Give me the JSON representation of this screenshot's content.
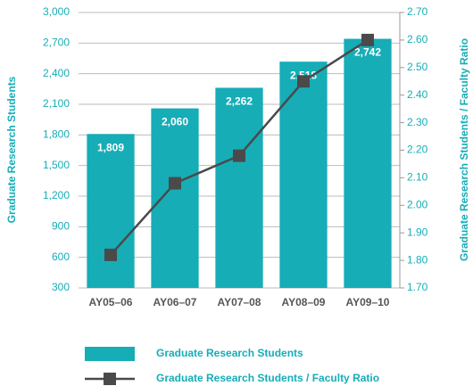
{
  "chart_data": {
    "type": "bar",
    "categories": [
      "AY05–06",
      "AY06–07",
      "AY07–08",
      "AY08–09",
      "AY09–10"
    ],
    "series": [
      {
        "name": "Graduate Research Students",
        "type": "bar",
        "color": "#16adb7",
        "values": [
          1809,
          2060,
          2262,
          2518,
          2742
        ],
        "value_labels": [
          "1,809",
          "2,060",
          "2,262",
          "2,518",
          "2,742"
        ]
      },
      {
        "name": "Graduate Research Students / Faculty Ratio",
        "type": "line",
        "color": "#4a4a4a",
        "axis": "y2",
        "values": [
          1.82,
          2.08,
          2.18,
          2.45,
          2.6
        ]
      }
    ],
    "ylabel": "Graduate Research Students",
    "y2label": "Graduate Research Students / Faculty Ratio",
    "ylim": [
      300,
      3000
    ],
    "yticks": [
      300,
      600,
      900,
      {
        "value": 1200,
        "label": "1,200"
      },
      {
        "value": 1500,
        "label": "1,500"
      },
      {
        "value": 1800,
        "label": "1,800"
      },
      {
        "value": 2100,
        "label": "2,100"
      },
      {
        "value": 2400,
        "label": "2,400"
      },
      {
        "value": 2700,
        "label": "2,700"
      },
      {
        "value": 3000,
        "label": "3,000"
      }
    ],
    "y2lim": [
      1.7,
      2.7
    ],
    "y2ticks": [
      {
        "value": 1.7,
        "label": "1.70"
      },
      {
        "value": 1.8,
        "label": "1.80"
      },
      {
        "value": 1.9,
        "label": "1.90"
      },
      {
        "value": 2.0,
        "label": "2.00"
      },
      {
        "value": 2.1,
        "label": "2.10"
      },
      {
        "value": 2.2,
        "label": "2.20"
      },
      {
        "value": 2.3,
        "label": "2.30"
      },
      {
        "value": 2.4,
        "label": "2.40"
      },
      {
        "value": 2.5,
        "label": "2.50"
      },
      {
        "value": 2.6,
        "label": "2.60"
      },
      {
        "value": 2.7,
        "label": "2.70"
      }
    ],
    "grid": true
  }
}
